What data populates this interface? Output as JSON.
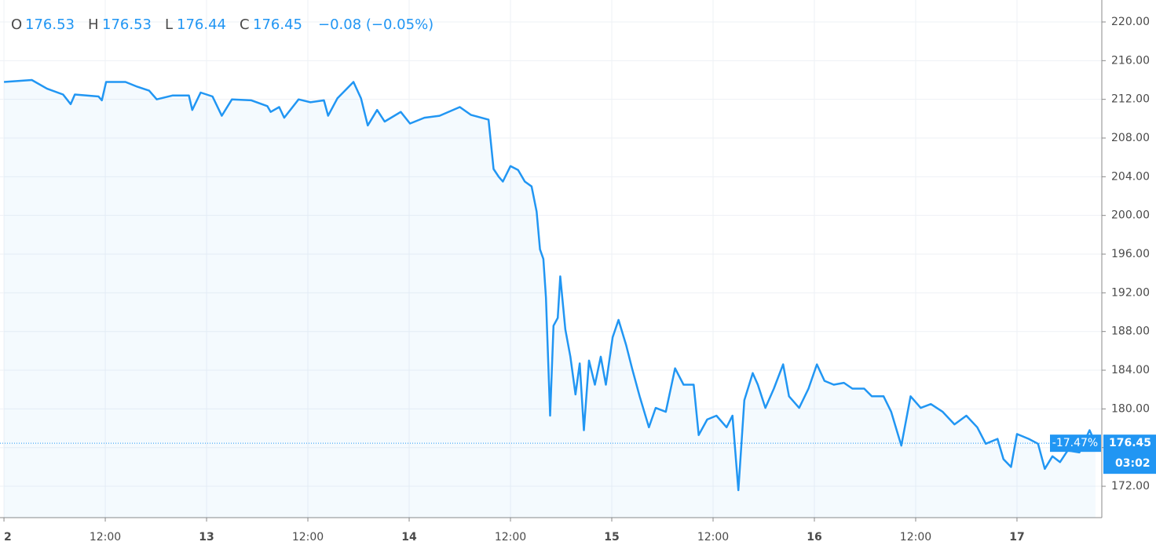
{
  "chart_data": {
    "type": "line",
    "header": {
      "o_label": "O",
      "o": 176.53,
      "h_label": "H",
      "h": 176.53,
      "l_label": "L",
      "l": 176.44,
      "c_label": "C",
      "c": 176.45,
      "change": "−0.08 (−0.05%)"
    },
    "x": [
      0,
      3.3,
      5.1,
      7.0,
      7.9,
      8.4,
      11.2,
      11.6,
      12.1,
      14.4,
      15.8,
      17.2,
      18.1,
      20.0,
      21.9,
      22.3,
      23.3,
      24.7,
      25.8,
      27.0,
      29.3,
      31.2,
      31.6,
      32.6,
      33.2,
      34.9,
      36.3,
      37.9,
      38.4,
      39.5,
      41.4,
      42.3,
      43.1,
      44.2,
      45.1,
      47.0,
      48.1,
      49.8,
      51.6,
      54.0,
      55.3,
      57.4,
      58.0,
      58.6,
      59.1,
      60.0,
      60.9,
      61.7,
      62.5,
      63.1,
      63.5,
      63.9,
      64.2,
      64.7,
      65.1,
      65.6,
      65.9,
      66.5,
      67.1,
      67.7,
      68.2,
      68.7,
      69.3,
      70.0,
      70.7,
      71.3,
      72.1,
      72.8,
      73.7,
      74.4,
      75.3,
      76.4,
      77.2,
      78.4,
      79.5,
      80.5,
      81.7,
      82.3,
      83.3,
      84.4,
      85.6,
      86.3,
      87.0,
      87.7,
      88.7,
      89.3,
      90.2,
      91.2,
      92.3,
      93.0,
      94.2,
      95.3,
      96.3,
      97.2,
      98.3,
      99.5,
      100.5,
      101.9,
      102.8,
      104.2,
      105.1,
      106.3,
      107.4,
      108.6,
      109.8,
      111.2,
      112.6,
      114.0,
      115.3,
      116.3,
      117.7,
      118.4,
      119.3,
      120.0,
      121.4,
      122.5,
      123.3,
      124.2,
      125.1,
      126.0,
      127.4,
      128.6,
      129.3
    ],
    "series": [
      {
        "color": "#2196f3",
        "values": [
          213.8,
          214.0,
          213.1,
          212.5,
          211.5,
          212.5,
          212.3,
          211.9,
          213.8,
          213.8,
          213.3,
          212.9,
          212.0,
          212.4,
          212.4,
          210.9,
          212.7,
          212.3,
          210.3,
          212.0,
          211.9,
          211.3,
          210.7,
          211.2,
          210.1,
          212.0,
          211.7,
          211.9,
          210.3,
          212.1,
          213.8,
          212.1,
          209.3,
          210.9,
          209.7,
          210.7,
          209.5,
          210.1,
          210.3,
          211.2,
          210.4,
          209.9,
          204.8,
          204.0,
          203.5,
          205.1,
          204.7,
          203.5,
          203.0,
          200.4,
          196.5,
          195.5,
          191.5,
          179.3,
          188.6,
          189.4,
          193.7,
          188.2,
          185.4,
          181.5,
          184.7,
          177.8,
          185.0,
          182.5,
          185.4,
          182.5,
          187.4,
          189.2,
          186.6,
          184.2,
          181.3,
          178.1,
          180.1,
          179.7,
          184.2,
          182.5,
          182.5,
          177.3,
          178.9,
          179.3,
          178.1,
          179.3,
          171.6,
          180.9,
          183.7,
          182.5,
          180.1,
          182.1,
          184.6,
          181.3,
          180.1,
          182.1,
          184.6,
          182.9,
          182.5,
          182.7,
          182.1,
          182.1,
          181.3,
          181.3,
          179.7,
          176.2,
          181.3,
          180.1,
          180.5,
          179.7,
          178.4,
          179.3,
          178.1,
          176.4,
          176.9,
          174.8,
          174.0,
          177.4,
          176.9,
          176.4,
          173.8,
          175.1,
          174.5,
          175.7,
          175.5,
          177.8,
          176.45
        ]
      }
    ],
    "xlim": [
      -0.47,
      130.05
    ],
    "xticks": [
      {
        "value": 0,
        "label": "2"
      },
      {
        "value": 12,
        "label": "12:00"
      },
      {
        "value": 24,
        "label": "13"
      },
      {
        "value": 36,
        "label": "12:00"
      },
      {
        "value": 48,
        "label": "14"
      },
      {
        "value": 60,
        "label": "12:00"
      },
      {
        "value": 72,
        "label": "15"
      },
      {
        "value": 84,
        "label": "12:00"
      },
      {
        "value": 96,
        "label": "16"
      },
      {
        "value": 108,
        "label": "12:00"
      },
      {
        "value": 120,
        "label": "17"
      }
    ],
    "ylim": [
      168.76,
      222.27
    ],
    "yticks": [
      {
        "value": 172,
        "label": "172.00"
      },
      {
        "value": 176,
        "label": "176.00"
      },
      {
        "value": 180,
        "label": "180.00"
      },
      {
        "value": 184,
        "label": "184.00"
      },
      {
        "value": 188,
        "label": "188.00"
      },
      {
        "value": 192,
        "label": "192.00"
      },
      {
        "value": 196,
        "label": "196.00"
      },
      {
        "value": 200,
        "label": "200.00"
      },
      {
        "value": 204,
        "label": "204.00"
      },
      {
        "value": 208,
        "label": "208.00"
      },
      {
        "value": 212,
        "label": "212.00"
      },
      {
        "value": 216,
        "label": "216.00"
      },
      {
        "value": 220,
        "label": "220.00"
      }
    ],
    "grid": true,
    "last_price": 176.45,
    "change_label": "-17.47%",
    "countdown": "03:02"
  }
}
